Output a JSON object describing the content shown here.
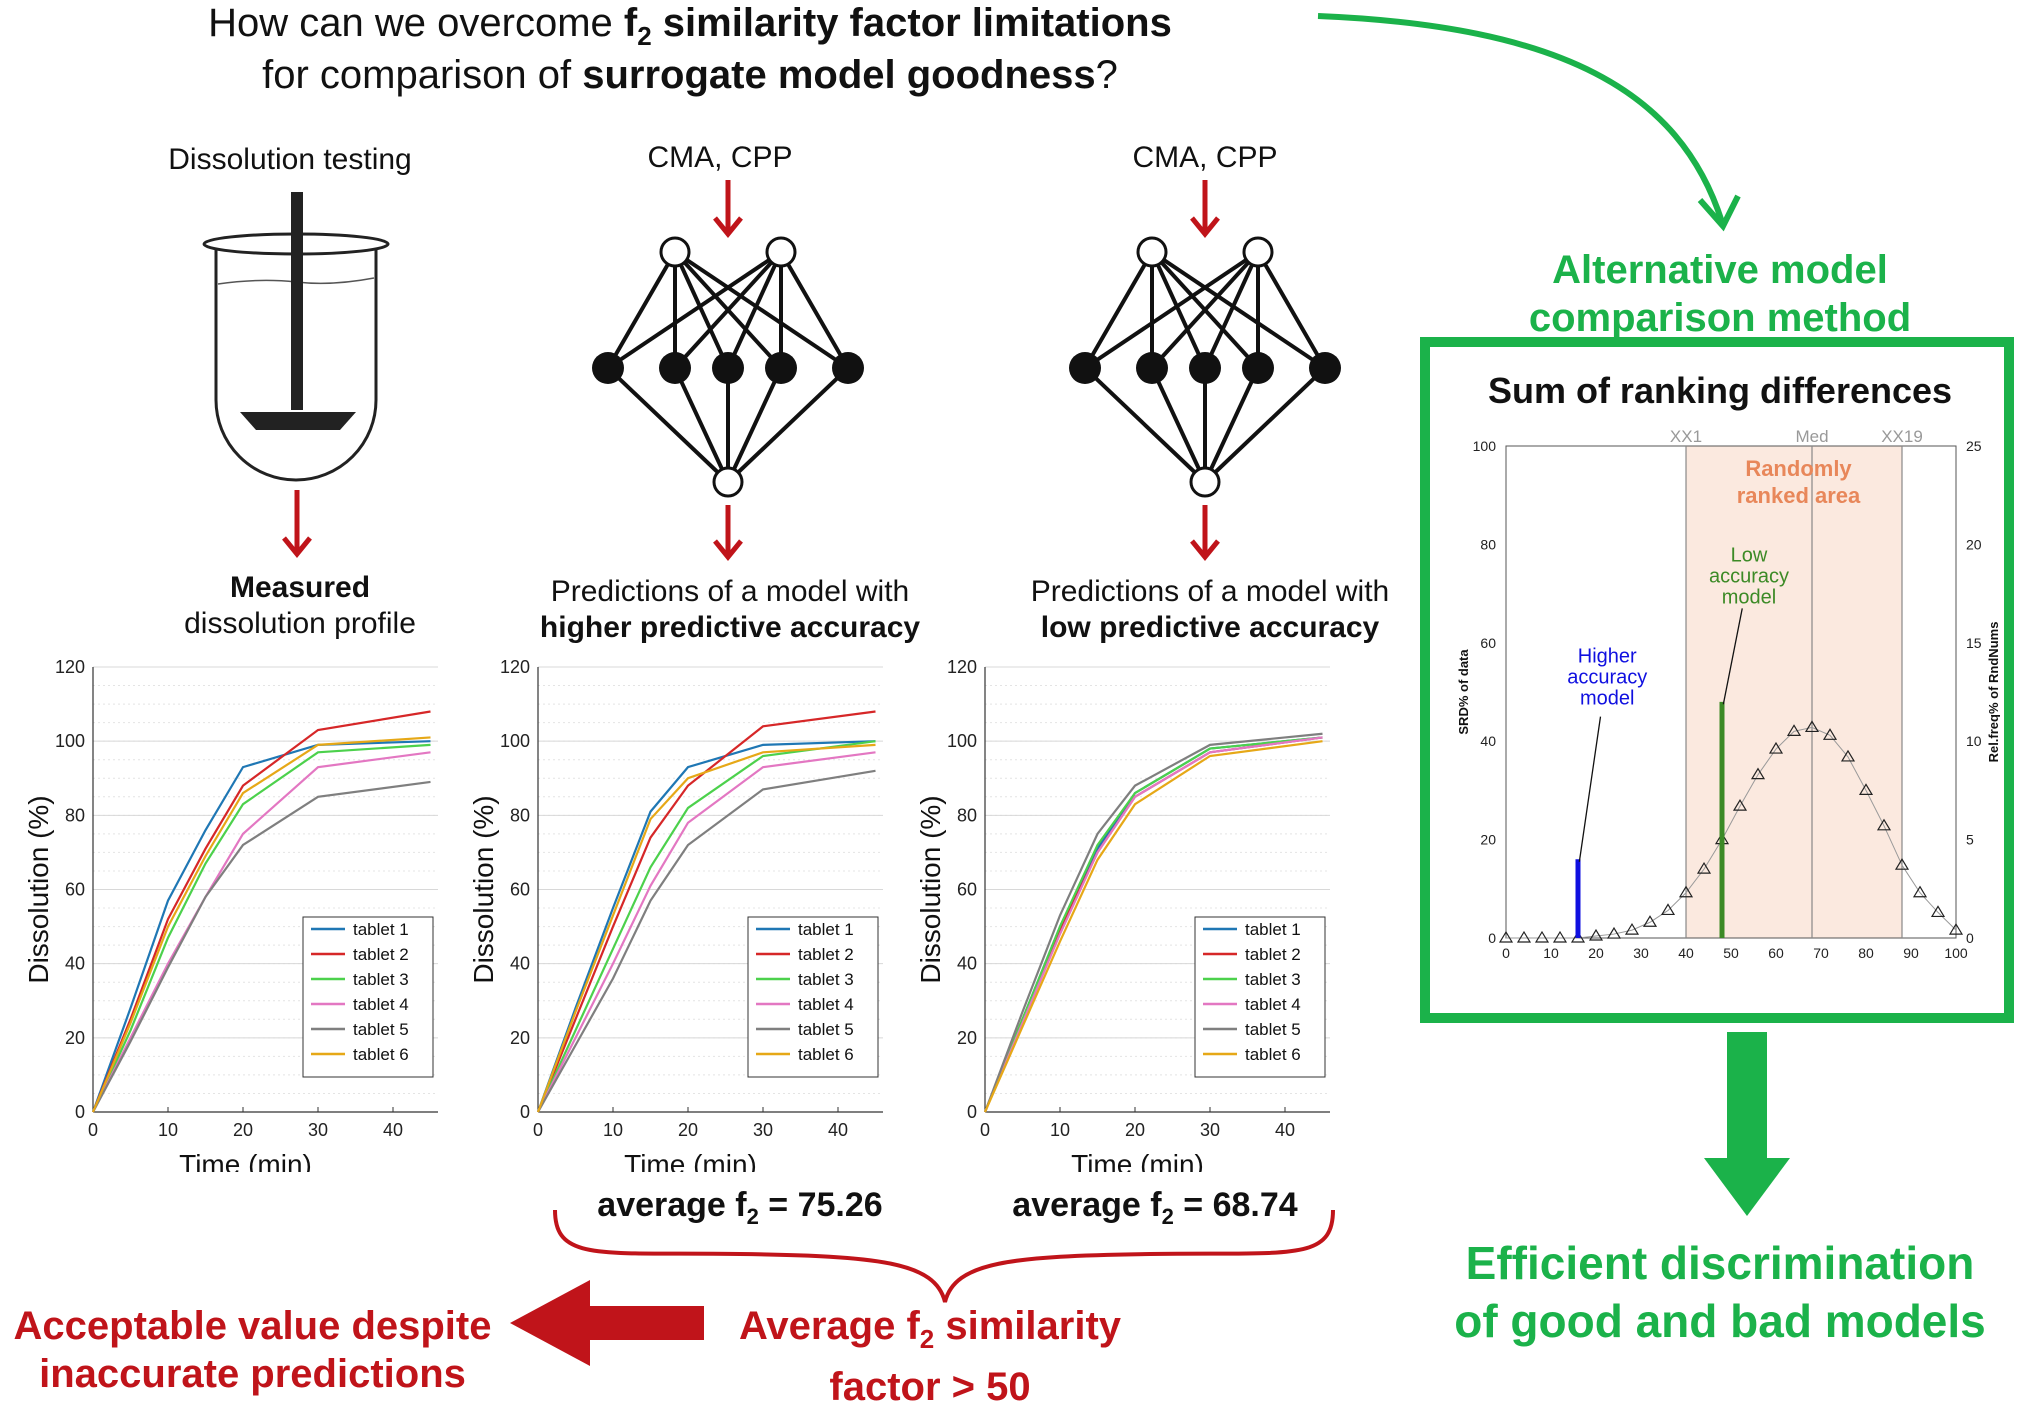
{
  "question": {
    "line1_pre": "How can we overcome ",
    "line1_bold": "f",
    "line1_sub": "2",
    "line1_bold2": " similarity factor limitations",
    "line2_pre": "for comparison of ",
    "line2_bold": "surrogate model goodness",
    "line2_post": "?"
  },
  "dissolution": {
    "label": "Dissolution testing",
    "caption_bold": "Measured",
    "caption_rest": "dissolution profile"
  },
  "model_high": {
    "input_label": "CMA, CPP",
    "caption_line1": "Predictions of a model with",
    "caption_bold": "higher predictive accuracy",
    "f2_text": "average f",
    "f2_sub": "2",
    "f2_value": " = 75.26"
  },
  "model_low": {
    "input_label": "CMA, CPP",
    "caption_line1": "Predictions of a model with",
    "caption_bold": "low predictive accuracy",
    "f2_text": "average f",
    "f2_sub": "2",
    "f2_value": " = 68.74"
  },
  "conclusion": {
    "avg_line1_pre": "Average f",
    "avg_sub": "2",
    "avg_line1_post": " similarity",
    "avg_line2": "factor > 50",
    "acceptable_line1": "Acceptable value despite",
    "acceptable_line2": "inaccurate predictions"
  },
  "alternative": {
    "line1": "Alternative model",
    "line2": "comparison method",
    "efficient_line1": "Efficient discrimination",
    "efficient_line2": "of good and bad models"
  },
  "srd": {
    "title": "Sum of ranking differences",
    "random_label_line1": "Randomly",
    "random_label_line2": "ranked area",
    "higher_label": [
      "Higher",
      "accuracy",
      "model"
    ],
    "low_label": [
      "Low",
      "accuracy",
      "model"
    ],
    "top_labels": [
      "XX1",
      "Med",
      "XX19"
    ],
    "left_axis_label": "SRD% of data",
    "right_axis_label": "Rel.freq% of RndNums"
  },
  "colors": {
    "green": "#1bb24a",
    "red": "#c0141a",
    "blue": "#1010e0",
    "srd_green": "#3c8a26",
    "random_area": "#fbe9df",
    "random_text": "#e8875a"
  },
  "chart_data": [
    {
      "id": "measured",
      "type": "line",
      "xlabel": "Time (min)",
      "ylabel": "Dissolution (%)",
      "xlim": [
        0,
        46
      ],
      "ylim": [
        0,
        120
      ],
      "xticks": [
        0,
        10,
        20,
        30,
        40
      ],
      "yticks": [
        0,
        20,
        40,
        60,
        80,
        100,
        120
      ],
      "x": [
        0,
        5,
        10,
        15,
        20,
        30,
        45
      ],
      "series": [
        {
          "name": "tablet 1",
          "color": "#1f77b4",
          "values": [
            0,
            28,
            57,
            76,
            93,
            99,
            100
          ]
        },
        {
          "name": "tablet 2",
          "color": "#d62728",
          "values": [
            0,
            25,
            52,
            71,
            88,
            103,
            108
          ]
        },
        {
          "name": "tablet 3",
          "color": "#4cd14c",
          "values": [
            0,
            22,
            47,
            67,
            83,
            97,
            99
          ]
        },
        {
          "name": "tablet 4",
          "color": "#e377c2",
          "values": [
            0,
            20,
            40,
            58,
            75,
            93,
            97
          ]
        },
        {
          "name": "tablet 5",
          "color": "#7f7f7f",
          "values": [
            0,
            19,
            39,
            58,
            72,
            85,
            89
          ]
        },
        {
          "name": "tablet 6",
          "color": "#e6a817",
          "values": [
            0,
            24,
            50,
            69,
            86,
            99,
            101
          ]
        }
      ]
    },
    {
      "id": "high_accuracy",
      "type": "line",
      "xlabel": "Time (min)",
      "ylabel": "Dissolution (%)",
      "xlim": [
        0,
        46
      ],
      "ylim": [
        0,
        120
      ],
      "xticks": [
        0,
        10,
        20,
        30,
        40
      ],
      "yticks": [
        0,
        20,
        40,
        60,
        80,
        100,
        120
      ],
      "x": [
        0,
        5,
        10,
        15,
        20,
        30,
        45
      ],
      "series": [
        {
          "name": "tablet 1",
          "color": "#1f77b4",
          "values": [
            0,
            28,
            55,
            81,
            93,
            99,
            100
          ]
        },
        {
          "name": "tablet 2",
          "color": "#d62728",
          "values": [
            0,
            25,
            50,
            74,
            88,
            104,
            108
          ]
        },
        {
          "name": "tablet 3",
          "color": "#4cd14c",
          "values": [
            0,
            22,
            44,
            66,
            82,
            96,
            100
          ]
        },
        {
          "name": "tablet 4",
          "color": "#e377c2",
          "values": [
            0,
            20,
            40,
            61,
            78,
            93,
            97
          ]
        },
        {
          "name": "tablet 5",
          "color": "#7f7f7f",
          "values": [
            0,
            18,
            36,
            57,
            72,
            87,
            92
          ]
        },
        {
          "name": "tablet 6",
          "color": "#e6a817",
          "values": [
            0,
            27,
            53,
            79,
            90,
            97,
            99
          ]
        }
      ]
    },
    {
      "id": "low_accuracy",
      "type": "line",
      "xlabel": "Time (min)",
      "ylabel": "Dissolution (%)",
      "xlim": [
        0,
        46
      ],
      "ylim": [
        0,
        120
      ],
      "xticks": [
        0,
        10,
        20,
        30,
        40
      ],
      "yticks": [
        0,
        20,
        40,
        60,
        80,
        100,
        120
      ],
      "x": [
        0,
        5,
        10,
        15,
        20,
        30,
        45
      ],
      "series": [
        {
          "name": "tablet 1",
          "color": "#1f77b4",
          "values": [
            0,
            25,
            50,
            71,
            86,
            98,
            101
          ]
        },
        {
          "name": "tablet 2",
          "color": "#d62728",
          "values": [
            0,
            25,
            49,
            70,
            85,
            97,
            101
          ]
        },
        {
          "name": "tablet 3",
          "color": "#4cd14c",
          "values": [
            0,
            25,
            50,
            72,
            86,
            98,
            101
          ]
        },
        {
          "name": "tablet 4",
          "color": "#e377c2",
          "values": [
            0,
            24,
            48,
            70,
            85,
            97,
            101
          ]
        },
        {
          "name": "tablet 5",
          "color": "#7f7f7f",
          "values": [
            0,
            27,
            53,
            75,
            88,
            99,
            102
          ]
        },
        {
          "name": "tablet 6",
          "color": "#e6a817",
          "values": [
            0,
            23,
            46,
            68,
            83,
            96,
            100
          ]
        }
      ]
    },
    {
      "id": "srd",
      "type": "scatter",
      "title": "Sum of ranking differences",
      "ylabel": "SRD% of data",
      "y2label": "Rel.freq% of RndNums",
      "xlim": [
        0,
        100
      ],
      "ylim": [
        0,
        100
      ],
      "y2lim": [
        0,
        25
      ],
      "xticks": [
        0,
        10,
        20,
        30,
        40,
        50,
        60,
        70,
        80,
        90,
        100
      ],
      "yticks": [
        0,
        20,
        40,
        60,
        80,
        100
      ],
      "y2ticks": [
        0,
        5,
        10,
        15,
        20,
        25
      ],
      "random_area": [
        40,
        88
      ],
      "vlines": {
        "XX1": 40,
        "Med": 68,
        "XX19": 88
      },
      "bars": [
        {
          "name": "Higher accuracy model",
          "x": 16,
          "y": 16,
          "color": "#1010e0"
        },
        {
          "name": "Low accuracy model",
          "x": 48,
          "y": 48,
          "color": "#3c8a26"
        }
      ],
      "distribution": {
        "x": [
          0,
          4,
          8,
          12,
          16,
          20,
          24,
          28,
          32,
          36,
          40,
          44,
          48,
          52,
          56,
          60,
          64,
          68,
          72,
          76,
          80,
          84,
          88,
          92,
          96,
          100
        ],
        "y2": [
          0,
          0,
          0,
          0,
          0,
          0.1,
          0.2,
          0.4,
          0.8,
          1.4,
          2.3,
          3.5,
          5,
          6.7,
          8.3,
          9.6,
          10.5,
          10.7,
          10.3,
          9.2,
          7.5,
          5.7,
          3.7,
          2.3,
          1.3,
          0.4
        ]
      }
    }
  ]
}
